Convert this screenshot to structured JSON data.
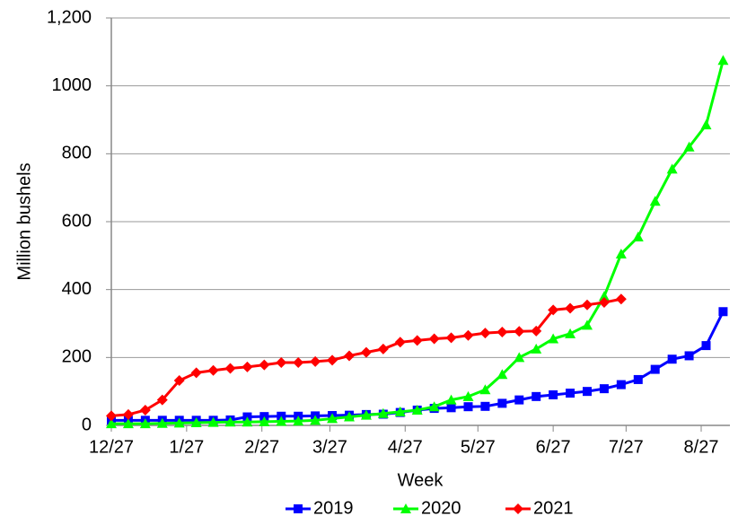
{
  "chart_data": {
    "type": "line",
    "y_label": "Million bushels",
    "x_label": "Week",
    "x": [
      0,
      1,
      2,
      3,
      4,
      5,
      6,
      7,
      8,
      9,
      10,
      11,
      12,
      13,
      14,
      15,
      16,
      17,
      18,
      19,
      20,
      21,
      22,
      23,
      24,
      25,
      26,
      27,
      28,
      29,
      30,
      31,
      32,
      33,
      34,
      35,
      36
    ],
    "xlim": [
      0,
      36.4
    ],
    "xticks": [
      {
        "value": 0,
        "label": "12/27"
      },
      {
        "value": 4.43,
        "label": "1/27"
      },
      {
        "value": 8.86,
        "label": "2/27"
      },
      {
        "value": 12.86,
        "label": "3/27"
      },
      {
        "value": 17.29,
        "label": "4/27"
      },
      {
        "value": 21.57,
        "label": "5/27"
      },
      {
        "value": 26,
        "label": "6/27"
      },
      {
        "value": 30.29,
        "label": "7/27"
      },
      {
        "value": 34.71,
        "label": "8/27"
      }
    ],
    "ylim": [
      0,
      1200
    ],
    "yticks": [
      0,
      200,
      400,
      600,
      800,
      1000,
      {
        "value": 1200,
        "label": "1,200"
      }
    ],
    "grid": true,
    "legend": "bottom",
    "series": [
      {
        "name": "2019",
        "color": "#0000ff",
        "marker": "square",
        "values": [
          15,
          15,
          15,
          15,
          15,
          15,
          15,
          16,
          25,
          26,
          27,
          27,
          28,
          29,
          30,
          32,
          33,
          38,
          45,
          50,
          52,
          55,
          56,
          65,
          75,
          85,
          90,
          95,
          100,
          108,
          120,
          135,
          165,
          195,
          205,
          235,
          335
        ]
      },
      {
        "name": "2020",
        "color": "#00ff00",
        "marker": "triangle",
        "values": [
          5,
          5,
          5,
          6,
          7,
          8,
          9,
          10,
          10,
          11,
          12,
          13,
          15,
          20,
          25,
          30,
          35,
          40,
          45,
          55,
          75,
          85,
          105,
          150,
          200,
          225,
          255,
          270,
          295,
          380,
          505,
          555,
          660,
          755,
          820,
          885,
          1075
        ]
      },
      {
        "name": "2021",
        "color": "#ff0000",
        "marker": "diamond",
        "values": [
          28,
          32,
          45,
          75,
          132,
          155,
          162,
          168,
          172,
          178,
          185,
          185,
          188,
          192,
          205,
          215,
          225,
          245,
          250,
          255,
          258,
          265,
          272,
          275,
          277,
          278,
          340,
          345,
          355,
          362,
          372,
          null,
          null,
          null,
          null,
          null,
          null
        ]
      }
    ]
  }
}
